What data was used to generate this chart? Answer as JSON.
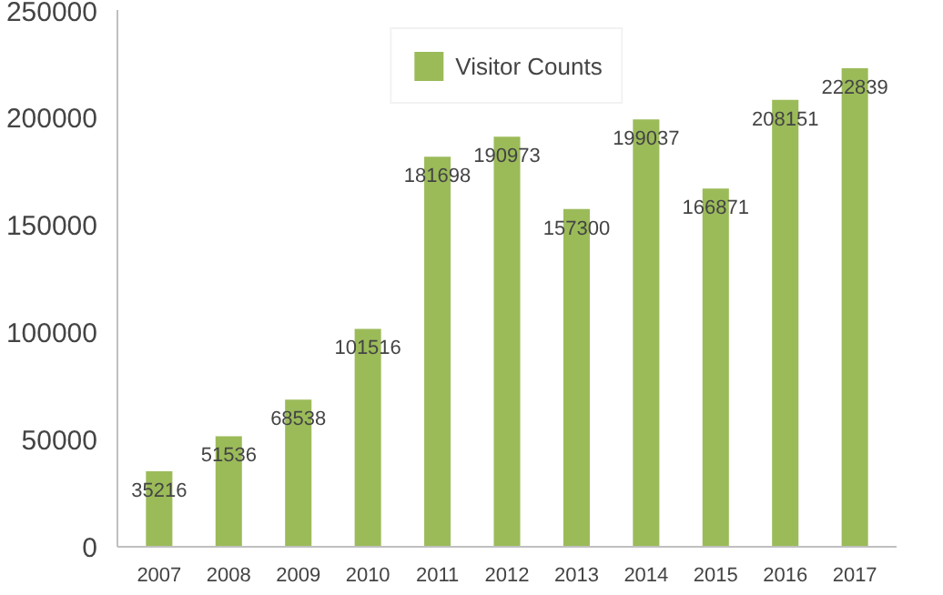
{
  "chart_data": {
    "type": "bar",
    "categories": [
      "2007",
      "2008",
      "2009",
      "2010",
      "2011",
      "2012",
      "2013",
      "2014",
      "2015",
      "2016",
      "2017"
    ],
    "series": [
      {
        "name": "Visitor Counts",
        "color": "#9bbb59",
        "values": [
          35216,
          51536,
          68538,
          101516,
          181698,
          190973,
          157300,
          199037,
          166871,
          208151,
          222839
        ]
      }
    ],
    "ylim": [
      0,
      250000
    ],
    "yticks": [
      0,
      50000,
      100000,
      150000,
      200000,
      250000
    ],
    "grid": false,
    "legend": "top",
    "data_labels": true
  }
}
